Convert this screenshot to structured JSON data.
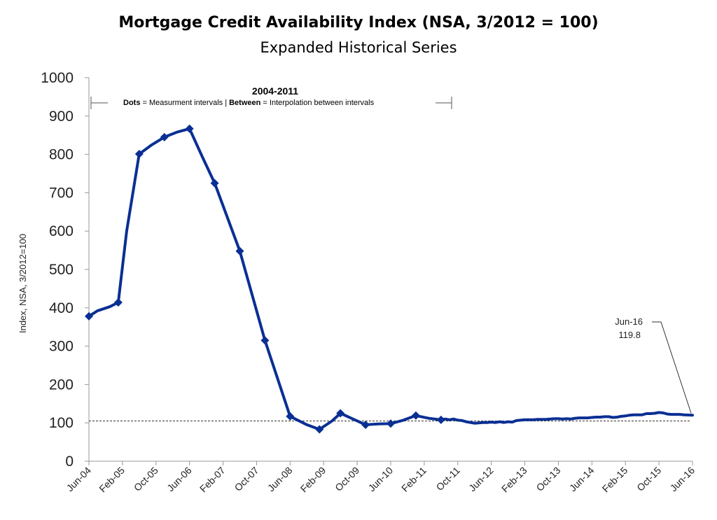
{
  "chart_data": {
    "type": "line",
    "title": "Mortgage Credit Availability Index (NSA, 3/2012 = 100)",
    "subtitle": "Expanded Historical Series",
    "ylabel": "Index, NSA, 3/2012=100",
    "xlabel": "",
    "ylim": [
      0,
      1000
    ],
    "yticks": [
      0,
      100,
      200,
      300,
      400,
      500,
      600,
      700,
      800,
      900,
      1000
    ],
    "xticks": [
      "Jun-04",
      "Feb-05",
      "Oct-05",
      "Jun-06",
      "Feb-07",
      "Oct-07",
      "Jun-08",
      "Feb-09",
      "Oct-09",
      "Jun-10",
      "Feb-11",
      "Oct-11",
      "Jun-12",
      "Feb-13",
      "Oct-13",
      "Jun-14",
      "Feb-15",
      "Oct-15",
      "Jun-16"
    ],
    "grid": false,
    "color": "#0a2f94",
    "reference_line": {
      "value": 105,
      "style": "dashed"
    },
    "annotation_period": {
      "heading": "2004-2011",
      "note_bold1": "Dots",
      "note_text1": " = Measurment intervals  |  ",
      "note_bold2": "Between",
      "note_text2": " = Interpolation between intervals"
    },
    "callout": {
      "label": "Jun-16",
      "value_text": "119.8"
    },
    "markers": [
      {
        "x": "Jun-04",
        "y": 378
      },
      {
        "x": "Jan-05",
        "y": 414
      },
      {
        "x": "Jun-05",
        "y": 801
      },
      {
        "x": "Dec-05",
        "y": 845
      },
      {
        "x": "Jun-06",
        "y": 867
      },
      {
        "x": "Dec-06",
        "y": 725
      },
      {
        "x": "Jun-07",
        "y": 548
      },
      {
        "x": "Dec-07",
        "y": 315
      },
      {
        "x": "Jun-08",
        "y": 117
      },
      {
        "x": "Jan-09",
        "y": 83
      },
      {
        "x": "Jun-09",
        "y": 125
      },
      {
        "x": "Dec-09",
        "y": 95
      },
      {
        "x": "Jun-10",
        "y": 98
      },
      {
        "x": "Dec-10",
        "y": 119
      },
      {
        "x": "Jun-11",
        "y": 108
      }
    ],
    "series": [
      {
        "values": [
          {
            "x": "Jun-04",
            "y": 378
          },
          {
            "x": "Aug-04",
            "y": 392
          },
          {
            "x": "Nov-04",
            "y": 403
          },
          {
            "x": "Jan-05",
            "y": 414
          },
          {
            "x": "Mar-05",
            "y": 600
          },
          {
            "x": "Jun-05",
            "y": 801
          },
          {
            "x": "Sep-05",
            "y": 825
          },
          {
            "x": "Dec-05",
            "y": 845
          },
          {
            "x": "Mar-06",
            "y": 858
          },
          {
            "x": "Jun-06",
            "y": 867
          },
          {
            "x": "Sep-06",
            "y": 795
          },
          {
            "x": "Dec-06",
            "y": 725
          },
          {
            "x": "Jun-07",
            "y": 548
          },
          {
            "x": "Dec-07",
            "y": 315
          },
          {
            "x": "Jun-08",
            "y": 117
          },
          {
            "x": "Oct-08",
            "y": 95
          },
          {
            "x": "Jan-09",
            "y": 83
          },
          {
            "x": "Apr-09",
            "y": 105
          },
          {
            "x": "Jun-09",
            "y": 125
          },
          {
            "x": "Sep-09",
            "y": 110
          },
          {
            "x": "Dec-09",
            "y": 95
          },
          {
            "x": "Mar-10",
            "y": 97
          },
          {
            "x": "Jun-10",
            "y": 98
          },
          {
            "x": "Sep-10",
            "y": 107
          },
          {
            "x": "Dec-10",
            "y": 119
          },
          {
            "x": "Mar-11",
            "y": 112
          },
          {
            "x": "Jun-11",
            "y": 108
          },
          {
            "x": "Jul-11",
            "y": 110
          },
          {
            "x": "Aug-11",
            "y": 108
          },
          {
            "x": "Sep-11",
            "y": 110
          },
          {
            "x": "Oct-11",
            "y": 107
          },
          {
            "x": "Nov-11",
            "y": 106
          },
          {
            "x": "Dec-11",
            "y": 103
          },
          {
            "x": "Jan-12",
            "y": 101
          },
          {
            "x": "Feb-12",
            "y": 99
          },
          {
            "x": "Mar-12",
            "y": 100
          },
          {
            "x": "Apr-12",
            "y": 101
          },
          {
            "x": "May-12",
            "y": 101
          },
          {
            "x": "Jun-12",
            "y": 102
          },
          {
            "x": "Jul-12",
            "y": 101
          },
          {
            "x": "Aug-12",
            "y": 103
          },
          {
            "x": "Sep-12",
            "y": 101
          },
          {
            "x": "Oct-12",
            "y": 103
          },
          {
            "x": "Nov-12",
            "y": 102
          },
          {
            "x": "Dec-12",
            "y": 106
          },
          {
            "x": "Jan-13",
            "y": 107
          },
          {
            "x": "Feb-13",
            "y": 108
          },
          {
            "x": "Mar-13",
            "y": 108
          },
          {
            "x": "Apr-13",
            "y": 108
          },
          {
            "x": "May-13",
            "y": 109
          },
          {
            "x": "Jun-13",
            "y": 109
          },
          {
            "x": "Jul-13",
            "y": 109
          },
          {
            "x": "Aug-13",
            "y": 110
          },
          {
            "x": "Sep-13",
            "y": 111
          },
          {
            "x": "Oct-13",
            "y": 111
          },
          {
            "x": "Nov-13",
            "y": 110
          },
          {
            "x": "Dec-13",
            "y": 111
          },
          {
            "x": "Jan-14",
            "y": 110
          },
          {
            "x": "Feb-14",
            "y": 112
          },
          {
            "x": "Mar-14",
            "y": 113
          },
          {
            "x": "Apr-14",
            "y": 113
          },
          {
            "x": "May-14",
            "y": 113
          },
          {
            "x": "Jun-14",
            "y": 114
          },
          {
            "x": "Jul-14",
            "y": 115
          },
          {
            "x": "Aug-14",
            "y": 115
          },
          {
            "x": "Sep-14",
            "y": 116
          },
          {
            "x": "Oct-14",
            "y": 116
          },
          {
            "x": "Nov-14",
            "y": 114
          },
          {
            "x": "Dec-14",
            "y": 115
          },
          {
            "x": "Jan-15",
            "y": 117
          },
          {
            "x": "Feb-15",
            "y": 118
          },
          {
            "x": "Mar-15",
            "y": 120
          },
          {
            "x": "Apr-15",
            "y": 121
          },
          {
            "x": "May-15",
            "y": 121
          },
          {
            "x": "Jun-15",
            "y": 121
          },
          {
            "x": "Jul-15",
            "y": 124
          },
          {
            "x": "Aug-15",
            "y": 124
          },
          {
            "x": "Sep-15",
            "y": 125
          },
          {
            "x": "Oct-15",
            "y": 127
          },
          {
            "x": "Nov-15",
            "y": 126
          },
          {
            "x": "Dec-15",
            "y": 123
          },
          {
            "x": "Jan-16",
            "y": 122
          },
          {
            "x": "Feb-16",
            "y": 122
          },
          {
            "x": "Mar-16",
            "y": 122
          },
          {
            "x": "Apr-16",
            "y": 121
          },
          {
            "x": "May-16",
            "y": 120.5
          },
          {
            "x": "Jun-16",
            "y": 119.8
          }
        ]
      }
    ]
  }
}
